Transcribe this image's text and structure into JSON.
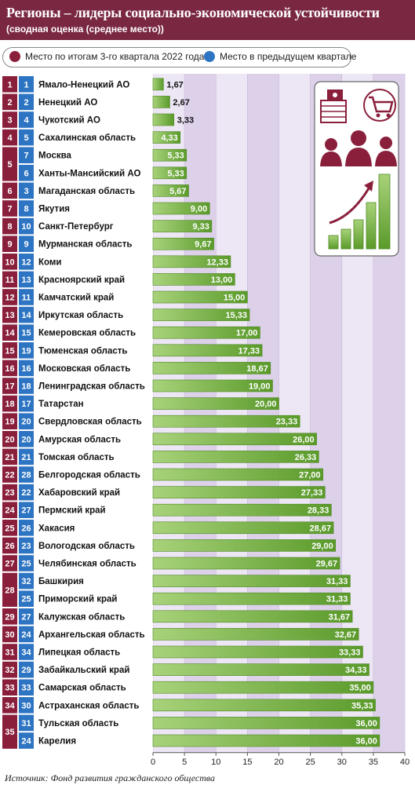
{
  "header": {
    "title": "Регионы – лидеры социально-экономической устойчивости",
    "subtitle": "(сводная оценка (среднее место))"
  },
  "legend": [
    {
      "label": "Место по итогам 3-го квартала 2022 года",
      "color": "#8a1f3c"
    },
    {
      "label": "Место в предыдущем квартале",
      "color": "#2d74c2"
    }
  ],
  "colors": {
    "current_rank": "#8a1f3c",
    "previous_rank": "#2d74c2",
    "bar_light": "#a8d27a",
    "bar_dark": "#5a9a2a",
    "plot_band_light": "#ede6f4",
    "plot_band_dark": "#ddd1ea",
    "header_bg": "#7a2742"
  },
  "chart_data": {
    "type": "bar",
    "orientation": "horizontal",
    "xlim": [
      0,
      40
    ],
    "xticks": [
      0,
      5,
      10,
      15,
      20,
      25,
      30,
      35,
      40
    ],
    "rows": [
      {
        "rank": "1",
        "prev": "1",
        "region": "Ямало-Ненецкий АО",
        "value": 1.67,
        "label": "1,67"
      },
      {
        "rank": "2",
        "prev": "2",
        "region": "Ненецкий АО",
        "value": 2.67,
        "label": "2,67"
      },
      {
        "rank": "3",
        "prev": "4",
        "region": "Чукотский АО",
        "value": 3.33,
        "label": "3,33"
      },
      {
        "rank": "4",
        "prev": "5",
        "region": "Сахалинская область",
        "value": 4.33,
        "label": "4,33"
      },
      {
        "rank": "5",
        "prev": "7",
        "region": "Москва",
        "value": 5.33,
        "label": "5,33"
      },
      {
        "rank": "5",
        "prev": "6",
        "region": "Ханты-Мансийский АО",
        "value": 5.33,
        "label": "5,33"
      },
      {
        "rank": "6",
        "prev": "3",
        "region": "Магаданская область",
        "value": 5.67,
        "label": "5,67"
      },
      {
        "rank": "7",
        "prev": "8",
        "region": "Якутия",
        "value": 9.0,
        "label": "9,00"
      },
      {
        "rank": "8",
        "prev": "10",
        "region": "Санкт-Петербург",
        "value": 9.33,
        "label": "9,33"
      },
      {
        "rank": "9",
        "prev": "9",
        "region": "Мурманская область",
        "value": 9.67,
        "label": "9,67"
      },
      {
        "rank": "10",
        "prev": "12",
        "region": "Коми",
        "value": 12.33,
        "label": "12,33"
      },
      {
        "rank": "11",
        "prev": "13",
        "region": "Красноярский край",
        "value": 13.0,
        "label": "13,00"
      },
      {
        "rank": "12",
        "prev": "11",
        "region": "Камчатский край",
        "value": 15.0,
        "label": "15,00"
      },
      {
        "rank": "13",
        "prev": "14",
        "region": "Иркутская область",
        "value": 15.33,
        "label": "15,33"
      },
      {
        "rank": "14",
        "prev": "15",
        "region": "Кемеровская область",
        "value": 17.0,
        "label": "17,00"
      },
      {
        "rank": "15",
        "prev": "19",
        "region": "Тюменская область",
        "value": 17.33,
        "label": "17,33"
      },
      {
        "rank": "16",
        "prev": "16",
        "region": "Московская область",
        "value": 18.67,
        "label": "18,67"
      },
      {
        "rank": "17",
        "prev": "18",
        "region": "Ленинградская область",
        "value": 19.0,
        "label": "19,00"
      },
      {
        "rank": "18",
        "prev": "17",
        "region": "Татарстан",
        "value": 20.0,
        "label": "20,00"
      },
      {
        "rank": "19",
        "prev": "20",
        "region": "Свердловская область",
        "value": 23.33,
        "label": "23,33"
      },
      {
        "rank": "20",
        "prev": "20",
        "region": "Амурская область",
        "value": 26.0,
        "label": "26,00"
      },
      {
        "rank": "21",
        "prev": "21",
        "region": "Томская область",
        "value": 26.33,
        "label": "26,33"
      },
      {
        "rank": "22",
        "prev": "28",
        "region": "Белгородская область",
        "value": 27.0,
        "label": "27,00"
      },
      {
        "rank": "23",
        "prev": "22",
        "region": "Хабаровский край",
        "value": 27.33,
        "label": "27,33"
      },
      {
        "rank": "24",
        "prev": "27",
        "region": "Пермский край",
        "value": 28.33,
        "label": "28,33"
      },
      {
        "rank": "25",
        "prev": "26",
        "region": "Хакасия",
        "value": 28.67,
        "label": "28,67"
      },
      {
        "rank": "26",
        "prev": "23",
        "region": "Вологодская область",
        "value": 29.0,
        "label": "29,00"
      },
      {
        "rank": "27",
        "prev": "25",
        "region": "Челябинская область",
        "value": 29.67,
        "label": "29,67"
      },
      {
        "rank": "28",
        "prev": "32",
        "region": "Башкирия",
        "value": 31.33,
        "label": "31,33"
      },
      {
        "rank": "28",
        "prev": "25",
        "region": "Приморский край",
        "value": 31.33,
        "label": "31,33"
      },
      {
        "rank": "29",
        "prev": "27",
        "region": "Калужская область",
        "value": 31.67,
        "label": "31,67"
      },
      {
        "rank": "30",
        "prev": "24",
        "region": "Архангельская область",
        "value": 32.67,
        "label": "32,67"
      },
      {
        "rank": "31",
        "prev": "34",
        "region": "Липецкая область",
        "value": 33.33,
        "label": "33,33"
      },
      {
        "rank": "32",
        "prev": "29",
        "region": "Забайкальский край",
        "value": 34.33,
        "label": "34,33"
      },
      {
        "rank": "33",
        "prev": "33",
        "region": "Самарская область",
        "value": 35.0,
        "label": "35,00"
      },
      {
        "rank": "34",
        "prev": "30",
        "region": "Астраханская область",
        "value": 35.33,
        "label": "35,33"
      },
      {
        "rank": "35",
        "prev": "31",
        "region": "Тульская область",
        "value": 36.0,
        "label": "36,00"
      },
      {
        "rank": "35",
        "prev": "24",
        "region": "Карелия",
        "value": 36.0,
        "label": "36,00"
      }
    ]
  },
  "illustration_icons": [
    "money-stack-icon",
    "shopping-cart-icon",
    "people-icon",
    "growth-chart-icon"
  ],
  "source": "Источник: Фонд развития гражданского общества"
}
